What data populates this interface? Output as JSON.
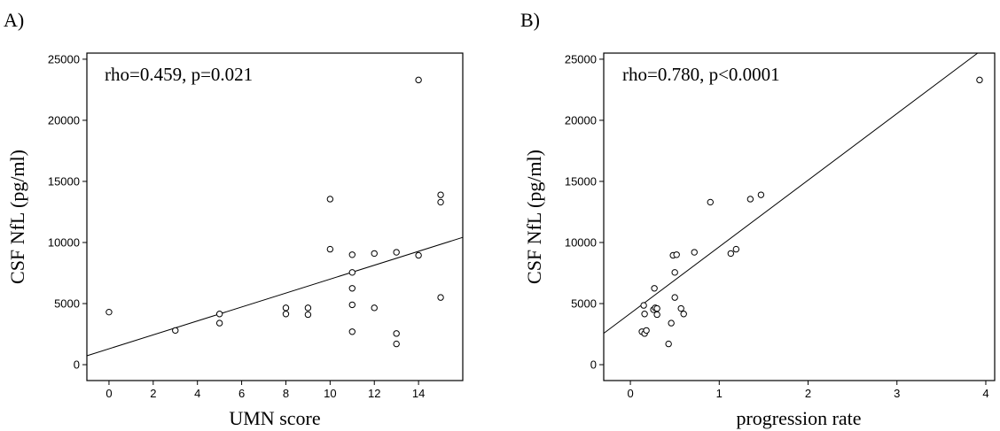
{
  "chart_data": [
    {
      "panel": "A)",
      "type": "scatter",
      "annotation": "rho=0.459, p=0.021",
      "xlabel": "UMN score",
      "ylabel": "CSF NfL (pg/ml)",
      "xlim": [
        -1,
        16
      ],
      "ylim": [
        -1300,
        25500
      ],
      "xticks": [
        0,
        2,
        4,
        6,
        8,
        10,
        12,
        14
      ],
      "yticks": [
        0,
        5000,
        10000,
        15000,
        20000,
        25000
      ],
      "points": [
        [
          0,
          4300
        ],
        [
          3,
          2800
        ],
        [
          5,
          4150
        ],
        [
          5,
          3400
        ],
        [
          8,
          4650
        ],
        [
          8,
          4150
        ],
        [
          9,
          4650
        ],
        [
          9,
          4100
        ],
        [
          10,
          13550
        ],
        [
          10,
          9450
        ],
        [
          11,
          9000
        ],
        [
          11,
          7550
        ],
        [
          11,
          6250
        ],
        [
          11,
          4900
        ],
        [
          11,
          2700
        ],
        [
          12,
          9100
        ],
        [
          12,
          4650
        ],
        [
          13,
          9200
        ],
        [
          13,
          2550
        ],
        [
          13,
          1700
        ],
        [
          14,
          23300
        ],
        [
          14,
          8950
        ],
        [
          15,
          13900
        ],
        [
          15,
          13300
        ],
        [
          15,
          5500
        ]
      ],
      "fit_line": {
        "intercept": 1300,
        "slope": 570
      }
    },
    {
      "panel": "B)",
      "type": "scatter",
      "annotation": "rho=0.780, p<0.0001",
      "xlabel": "progression rate",
      "ylabel": "CSF NfL (pg/ml)",
      "xlim": [
        -0.3,
        4.1
      ],
      "ylim": [
        -1300,
        25500
      ],
      "xticks": [
        0,
        1,
        2,
        3,
        4
      ],
      "yticks": [
        0,
        5000,
        10000,
        15000,
        20000,
        25000
      ],
      "points": [
        [
          0.13,
          2700
        ],
        [
          0.16,
          2550
        ],
        [
          0.18,
          2800
        ],
        [
          0.15,
          4850
        ],
        [
          0.16,
          4150
        ],
        [
          0.26,
          4500
        ],
        [
          0.28,
          4650
        ],
        [
          0.3,
          4100
        ],
        [
          0.3,
          4600
        ],
        [
          0.27,
          6250
        ],
        [
          0.43,
          1700
        ],
        [
          0.46,
          3400
        ],
        [
          0.5,
          5500
        ],
        [
          0.5,
          7550
        ],
        [
          0.48,
          8950
        ],
        [
          0.52,
          9000
        ],
        [
          0.57,
          4600
        ],
        [
          0.6,
          4150
        ],
        [
          0.72,
          9200
        ],
        [
          0.9,
          13300
        ],
        [
          1.13,
          9100
        ],
        [
          1.19,
          9450
        ],
        [
          1.35,
          13550
        ],
        [
          1.47,
          13900
        ],
        [
          3.93,
          23300
        ]
      ],
      "fit_line": {
        "intercept": 4200,
        "slope": 5450
      }
    }
  ]
}
